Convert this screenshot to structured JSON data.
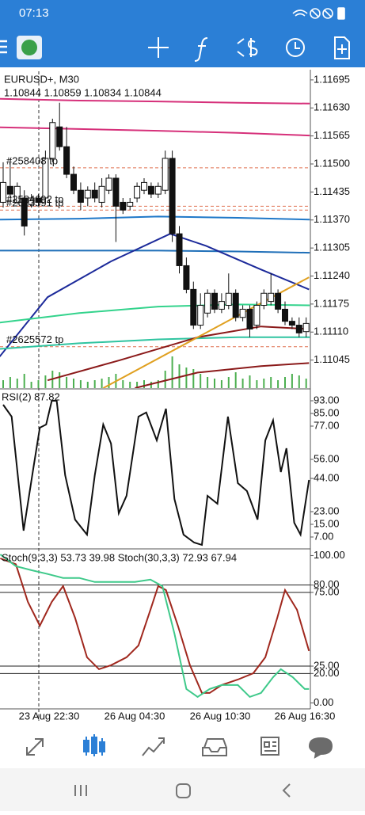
{
  "status_bar": {
    "time": "07:13"
  },
  "time_axis": [
    "23 Aug 22:30",
    "26 Aug 04:30",
    "26 Aug 10:30",
    "26 Aug 16:30"
  ],
  "chart_data": [
    {
      "type": "candlestick",
      "title": "EURUSD+, M30",
      "subtitle": "1.10844 1.10859 1.10834 1.10844",
      "ylim": [
        1.1098,
        1.11715
      ],
      "yticks": [
        1.11695,
        {
          "value": 1.1163,
          "label": "1.11630"
        },
        1.11565,
        {
          "value": 1.115,
          "label": "1.11500"
        },
        1.11435,
        {
          "value": 1.1137,
          "label": "1.11370"
        },
        1.11305,
        {
          "value": 1.1124,
          "label": "1.11240"
        },
        1.11175,
        {
          "value": 1.1111,
          "label": "1.11110"
        },
        1.11045
      ],
      "open": [
        1.11411,
        1.11448,
        1.11411,
        1.11421,
        1.11406,
        1.11421,
        1.11421,
        1.11513,
        1.11586,
        1.1154,
        1.11476,
        1.11439,
        1.11421,
        1.11439,
        1.11411,
        1.11439,
        1.11467,
        1.11411,
        1.11402,
        1.11421,
        1.11439,
        1.11448,
        1.1143,
        1.11439,
        1.11513,
        1.11338,
        1.11264,
        1.11209,
        1.11126,
        1.11154,
        1.112,
        1.11163,
        1.11172,
        1.112,
        1.11144,
        1.11163,
        1.11126,
        1.11172,
        1.11181,
        1.112,
        1.11163,
        1.11135,
        1.11126,
        1.11111
      ],
      "high": [
        1.11504,
        1.11513,
        1.11457,
        1.11439,
        1.1143,
        1.1143,
        1.11531,
        1.11605,
        1.11642,
        1.11586,
        1.11494,
        1.11457,
        1.11448,
        1.11457,
        1.11467,
        1.11476,
        1.11476,
        1.11421,
        1.11421,
        1.11457,
        1.11467,
        1.11457,
        1.11457,
        1.11531,
        1.11531,
        1.11356,
        1.11283,
        1.11227,
        1.112,
        1.11209,
        1.11209,
        1.112,
        1.11246,
        1.11209,
        1.11172,
        1.11172,
        1.11181,
        1.11209,
        1.11246,
        1.11209,
        1.11181,
        1.11144,
        1.11144,
        1.11144
      ],
      "low": [
        1.11399,
        1.11421,
        1.11406,
        1.11334,
        1.11399,
        1.11402,
        1.11411,
        1.11504,
        1.11531,
        1.11467,
        1.1143,
        1.11393,
        1.11402,
        1.11411,
        1.11399,
        1.1143,
        1.11319,
        1.11384,
        1.11393,
        1.11411,
        1.1143,
        1.11421,
        1.11421,
        1.1143,
        1.11319,
        1.11246,
        1.112,
        1.11117,
        1.11117,
        1.11144,
        1.11154,
        1.11154,
        1.11163,
        1.11135,
        1.11135,
        1.11098,
        1.11117,
        1.11163,
        1.11172,
        1.11154,
        1.11126,
        1.11117,
        1.11098,
        1.11098
      ],
      "close": [
        1.11457,
        1.1143,
        1.11448,
        1.11356,
        1.11421,
        1.11411,
        1.11513,
        1.11596,
        1.1154,
        1.11476,
        1.11439,
        1.11411,
        1.11439,
        1.11421,
        1.11448,
        1.11467,
        1.11402,
        1.11393,
        1.11411,
        1.11448,
        1.11457,
        1.1143,
        1.11448,
        1.11513,
        1.11338,
        1.11264,
        1.11209,
        1.11126,
        1.11172,
        1.112,
        1.11163,
        1.11181,
        1.112,
        1.11144,
        1.11163,
        1.11117,
        1.11172,
        1.112,
        1.112,
        1.11163,
        1.11135,
        1.11126,
        1.11108,
        1.1113
      ],
      "volume": [
        10,
        14,
        12,
        18,
        8,
        10,
        16,
        22,
        20,
        14,
        12,
        10,
        8,
        10,
        12,
        14,
        18,
        10,
        8,
        8,
        10,
        8,
        10,
        22,
        40,
        30,
        26,
        24,
        18,
        14,
        12,
        10,
        14,
        20,
        12,
        16,
        10,
        12,
        14,
        10,
        14,
        18,
        16,
        12
      ],
      "volume_color": "#4caf50",
      "lines": [
        {
          "color": "#d6307a",
          "x": [
            -0.5,
            10.8,
            22,
            33.3,
            43.5
          ],
          "values": [
            1.11651,
            1.11647,
            1.11645,
            1.11642,
            1.1164
          ]
        },
        {
          "color": "#d6307a",
          "x": [
            -0.5,
            10.8,
            22,
            33.3,
            43.5
          ],
          "values": [
            1.11585,
            1.11581,
            1.11577,
            1.11572,
            1.11566
          ]
        },
        {
          "color": "#1f78c8",
          "x": [
            -0.5,
            10.8,
            22,
            33.3,
            43.5
          ],
          "values": [
            1.11371,
            1.11373,
            1.11378,
            1.11375,
            1.11371
          ]
        },
        {
          "color": "#1f6fb8",
          "x": [
            -0.5,
            10.8,
            22,
            33.3,
            43.5
          ],
          "values": [
            1.11299,
            1.11299,
            1.11299,
            1.11297,
            1.11294
          ]
        },
        {
          "color": "#1c2a9a",
          "x": [
            -0.5,
            6.3,
            15.3,
            23.7,
            28.8,
            36.6,
            43.4
          ],
          "values": [
            1.11053,
            1.11191,
            1.11274,
            1.11338,
            1.1131,
            1.11255,
            1.11209
          ]
        },
        {
          "color": "#33d38c",
          "x": [
            -0.5,
            10.8,
            22,
            33.3,
            43.5
          ],
          "values": [
            1.11132,
            1.11154,
            1.11169,
            1.11174,
            1.11172
          ]
        },
        {
          "color": "#2fc4a0",
          "x": [
            -0.5,
            10.8,
            22,
            33.3,
            43.5
          ],
          "values": [
            1.11071,
            1.11084,
            1.11093,
            1.11098,
            1.11098
          ]
        },
        {
          "color": "#8b1a1a",
          "x": [
            6.3,
            16.4,
            27.6,
            36.6,
            43.4
          ],
          "values": [
            1.10998,
            1.11044,
            1.11098,
            1.11123,
            1.11117
          ]
        },
        {
          "color": "#8b1a1a",
          "x": [
            18.7,
            27.6,
            36.6,
            43.4
          ],
          "values": [
            1.1098,
            1.11016,
            1.11031,
            1.11038
          ]
        },
        {
          "color": "#e0a020",
          "x": [
            14.2,
            43.4
          ],
          "values": [
            1.1098,
            1.11237
          ]
        }
      ],
      "orders": [
        {
          "label": "#258408 tp",
          "value": 1.11491
        },
        {
          "label": "#2584692 tp",
          "value": 1.11402
        },
        {
          "label": "#2623591 tp",
          "value": 1.11393
        },
        {
          "label": "#2625572 tp",
          "value": 1.11076
        }
      ],
      "order_color": "#e07050"
    },
    {
      "type": "line",
      "title": "RSI(2) 87.82",
      "ylim": [
        0,
        100
      ],
      "color": "#111111",
      "yticks": [
        {
          "value": 93,
          "label": "93.00"
        },
        {
          "value": 85,
          "label": "85.00"
        },
        {
          "value": 77,
          "label": "77.00"
        },
        {
          "value": 56,
          "label": "56.00"
        },
        {
          "value": 44,
          "label": "44.00"
        },
        {
          "value": 23,
          "label": "23.00"
        },
        {
          "value": 15,
          "label": "15.00"
        },
        {
          "value": 7,
          "label": "7.00"
        }
      ],
      "series": [
        {
          "color": "#111111",
          "x": [
            0,
            1.2,
            2.9,
            4.3,
            5.2,
            6.1,
            6.9,
            7.6,
            8.8,
            10.2,
            11.9,
            13,
            14.2,
            15.3,
            16.4,
            17.5,
            19.2,
            20.3,
            21.8,
            23.1,
            24.3,
            25.6,
            27.1,
            28.2,
            29,
            30.4,
            31.9,
            33.3,
            34.6,
            36.1,
            37.2,
            38.3,
            39.4,
            40.2,
            41.3,
            42.2,
            43.4
          ],
          "values": [
            90.5,
            83,
            11,
            51,
            76,
            78,
            93,
            93,
            46,
            18,
            8.5,
            46,
            78,
            66,
            22,
            33,
            83,
            85.6,
            68,
            88,
            31,
            8.5,
            3.5,
            2,
            33,
            28,
            83,
            41,
            36,
            18,
            68,
            80.6,
            48,
            63,
            16,
            8.5,
            43
          ]
        }
      ]
    },
    {
      "type": "line",
      "title": "Stoch(9,3,3) 53.73 39.98 Stoch(30,3,3) 72.93 67.94",
      "ylim": [
        -4,
        104
      ],
      "yticks": [
        {
          "value": 100,
          "label": "100.00"
        },
        {
          "value": 80,
          "label": "80.00"
        },
        {
          "value": 75,
          "label": "75.00"
        },
        {
          "value": 25,
          "label": "25.00"
        },
        {
          "value": 20,
          "label": "20.00"
        },
        {
          "value": 0,
          "label": "0.00"
        }
      ],
      "levels": [
        80,
        75,
        25,
        20
      ],
      "series": [
        {
          "color": "#a0281e",
          "x": [
            -0.4,
            1.8,
            3.5,
            5.2,
            6.9,
            8.5,
            10.2,
            11.9,
            13.6,
            15.3,
            17.5,
            19.2,
            20.9,
            22,
            23.1,
            24.8,
            26.5,
            28.2,
            29.3,
            31,
            33.3,
            35.5,
            37.2,
            38.9,
            40,
            41.7,
            43.4
          ],
          "values": [
            98.1,
            94.1,
            68.6,
            52.4,
            68.6,
            79.3,
            57.8,
            31,
            22.9,
            25.6,
            31,
            39,
            63.2,
            79.3,
            76.6,
            52.4,
            25.6,
            6.8,
            6.8,
            12.2,
            15.9,
            20.2,
            31,
            57.8,
            76.6,
            63.2,
            35.3
          ]
        },
        {
          "color": "#3ec98a",
          "x": [
            -0.4,
            1.8,
            4,
            6.3,
            8.5,
            10.8,
            13,
            16.4,
            18.7,
            20.9,
            22.6,
            24.3,
            26,
            27.6,
            29.3,
            31,
            33.3,
            35,
            36.6,
            38.3,
            39.4,
            41.1,
            42.8,
            43.4
          ],
          "values": [
            100.8,
            92.8,
            90.1,
            87.5,
            84.8,
            84.8,
            82.1,
            82.1,
            82.1,
            83.7,
            79.3,
            47.1,
            9.5,
            4.1,
            9.5,
            12.2,
            12.2,
            4.1,
            6.8,
            17.5,
            22.9,
            17.5,
            9.5,
            9.5
          ]
        }
      ]
    }
  ]
}
